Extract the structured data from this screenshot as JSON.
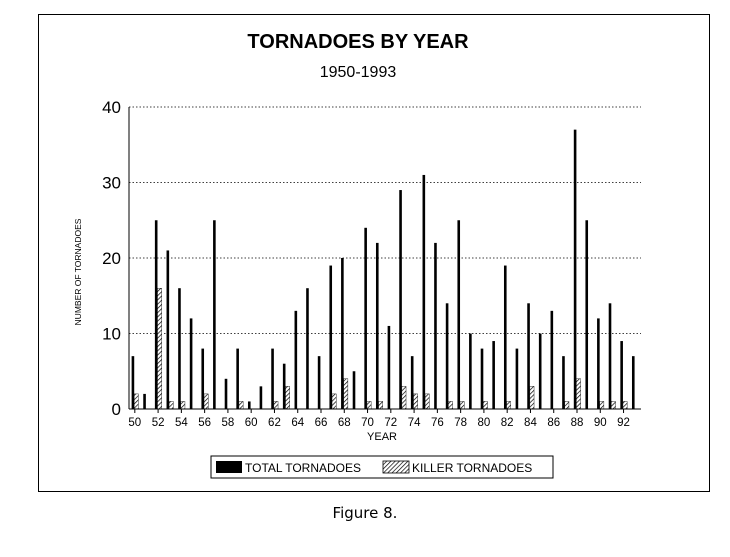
{
  "caption": "Figure 8.",
  "chart_data": {
    "type": "bar",
    "title": "TORNADOES BY YEAR",
    "subtitle": "1950-1993",
    "xlabel": "YEAR",
    "ylabel": "NUMBER OF TORNADOES",
    "ylim": [
      0,
      40
    ],
    "yticks": [
      0,
      10,
      20,
      30,
      40
    ],
    "grid": true,
    "legend": "bottom",
    "categories": [
      "50",
      "51",
      "52",
      "53",
      "54",
      "55",
      "56",
      "57",
      "58",
      "59",
      "60",
      "61",
      "62",
      "63",
      "64",
      "65",
      "66",
      "67",
      "68",
      "69",
      "70",
      "71",
      "72",
      "73",
      "74",
      "75",
      "76",
      "77",
      "78",
      "79",
      "80",
      "81",
      "82",
      "83",
      "84",
      "85",
      "86",
      "87",
      "88",
      "89",
      "90",
      "91",
      "92",
      "93"
    ],
    "xtick_labels": [
      "50",
      "52",
      "54",
      "56",
      "58",
      "60",
      "62",
      "64",
      "66",
      "68",
      "70",
      "72",
      "74",
      "76",
      "78",
      "80",
      "82",
      "84",
      "86",
      "88",
      "90",
      "92"
    ],
    "series": [
      {
        "name": "TOTAL TORNADOES",
        "values": [
          7,
          2,
          25,
          21,
          16,
          12,
          8,
          25,
          4,
          8,
          1,
          3,
          8,
          6,
          13,
          16,
          7,
          19,
          20,
          5,
          24,
          22,
          11,
          29,
          7,
          31,
          22,
          14,
          25,
          10,
          8,
          9,
          19,
          8,
          14,
          10,
          13,
          7,
          37,
          25,
          12,
          14,
          9,
          7
        ]
      },
      {
        "name": "KILLER TORNADOES",
        "values": [
          2,
          0,
          16,
          1,
          1,
          0,
          2,
          0,
          0,
          1,
          0,
          0,
          1,
          3,
          0,
          0,
          0,
          2,
          4,
          0,
          1,
          1,
          0,
          3,
          2,
          2,
          0,
          1,
          1,
          0,
          1,
          0,
          1,
          0,
          3,
          0,
          0,
          1,
          4,
          0,
          1,
          1,
          1,
          0
        ]
      }
    ]
  }
}
